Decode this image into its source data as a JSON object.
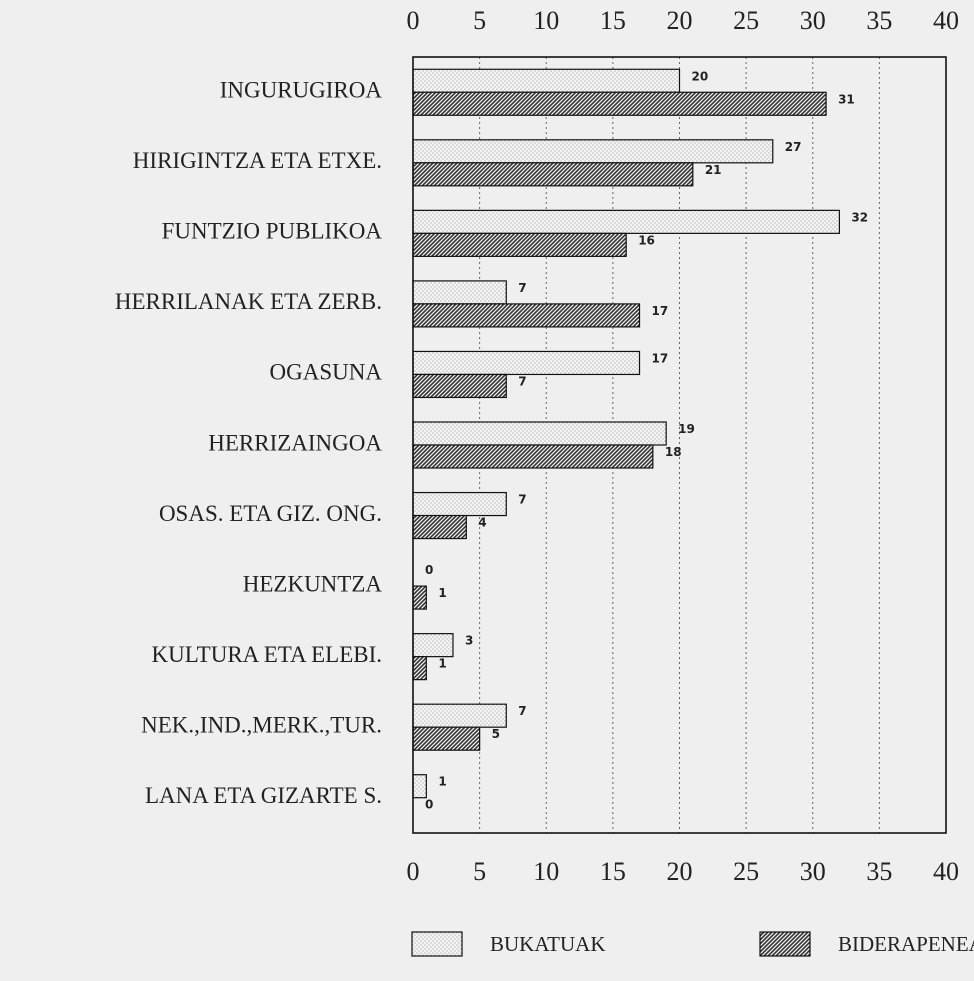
{
  "chart_data": {
    "type": "hbar",
    "categories": [
      "INGURUGIROA",
      "HIRIGINTZA ETA ETXE.",
      "FUNTZIO PUBLIKOA",
      "HERRILANAK ETA ZERB.",
      "OGASUNA",
      "HERRIZAINGOA",
      "OSAS. ETA GIZ. ONG.",
      "HEZKUNTZA",
      "KULTURA ETA ELEBI.",
      "NEK.,IND.,MERK.,TUR.",
      "LANA ETA GIZARTE S."
    ],
    "series": [
      {
        "name": "BUKATUAK",
        "color": "#bbbbbb",
        "pattern": "dots",
        "values": [
          20,
          27,
          32,
          7,
          17,
          19,
          7,
          0,
          3,
          7,
          1
        ]
      },
      {
        "name": "BIDERAPENEAN",
        "color": "#333333",
        "pattern": "hatch",
        "values": [
          31,
          21,
          16,
          17,
          7,
          18,
          4,
          1,
          1,
          5,
          0
        ]
      }
    ],
    "xlim": [
      0,
      40
    ],
    "xticks": [
      0,
      5,
      10,
      15,
      20,
      25,
      30,
      35,
      40
    ],
    "grid": true
  }
}
